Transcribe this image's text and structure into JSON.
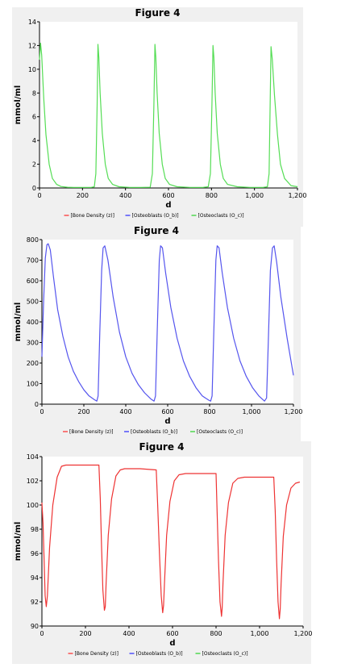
{
  "chart_data": [
    {
      "type": "line",
      "title": "Figure 4",
      "xlabel": "d",
      "ylabel": "mmol/ml",
      "xlim": [
        0,
        1200
      ],
      "ylim": [
        0,
        14
      ],
      "xticks": [
        0,
        200,
        400,
        600,
        800,
        1000,
        1200
      ],
      "xtick_labels": [
        "0",
        "200",
        "400",
        "600",
        "800",
        "1,000",
        "1,200"
      ],
      "yticks": [
        0,
        2,
        4,
        6,
        8,
        10,
        12,
        14
      ],
      "ytick_labels": [
        "0",
        "2",
        "4",
        "6",
        "8",
        "10",
        "12",
        "14"
      ],
      "grid": false,
      "legend_position": "bottom",
      "legend": [
        {
          "label": "[Bone Density (z)]",
          "color": "#ff0000"
        },
        {
          "label": "[Osteoblasts (O_b)]",
          "color": "#0000ff"
        },
        {
          "label": "[Osteoclasts (O_c)]",
          "color": "#00cc00"
        }
      ],
      "series": [
        {
          "name": "[Osteoclasts (O_c)]",
          "color": "#55dd55",
          "x": [
            0,
            5,
            10,
            20,
            30,
            45,
            60,
            80,
            100,
            130,
            160,
            200,
            240,
            255,
            262,
            268,
            272,
            276,
            282,
            292,
            306,
            320,
            340,
            370,
            420,
            470,
            515,
            525,
            532,
            537,
            541,
            547,
            557,
            571,
            585,
            605,
            640,
            700,
            760,
            785,
            795,
            802,
            807,
            811,
            817,
            827,
            841,
            855,
            875,
            920,
            980,
            1040,
            1060,
            1068,
            1073,
            1077,
            1083,
            1093,
            1107,
            1121,
            1140,
            1170,
            1200
          ],
          "y": [
            10.8,
            12.2,
            11.2,
            7.5,
            4.5,
            2.0,
            0.8,
            0.3,
            0.12,
            0.06,
            0.05,
            0.05,
            0.05,
            0.1,
            1.2,
            7.0,
            12.1,
            11.0,
            8.0,
            4.6,
            2.0,
            0.8,
            0.3,
            0.1,
            0.05,
            0.05,
            0.06,
            1.2,
            7.0,
            12.1,
            11.0,
            8.0,
            4.6,
            2.0,
            0.8,
            0.3,
            0.1,
            0.05,
            0.05,
            0.1,
            1.2,
            7.0,
            12.0,
            11.0,
            8.0,
            4.6,
            2.0,
            0.8,
            0.3,
            0.1,
            0.05,
            0.05,
            0.1,
            1.2,
            7.0,
            11.9,
            10.8,
            7.8,
            4.5,
            2.0,
            0.8,
            0.2,
            0.1
          ]
        }
      ]
    },
    {
      "type": "line",
      "title": "Figure 4",
      "xlabel": "d",
      "ylabel": "mmol/ml",
      "xlim": [
        0,
        1200
      ],
      "ylim": [
        0,
        800
      ],
      "xticks": [
        0,
        200,
        400,
        600,
        800,
        1000,
        1200
      ],
      "xtick_labels": [
        "0",
        "200",
        "400",
        "600",
        "800",
        "1,000",
        "1,200"
      ],
      "yticks": [
        0,
        100,
        200,
        300,
        400,
        500,
        600,
        700,
        800
      ],
      "ytick_labels": [
        "0",
        "100",
        "200",
        "300",
        "400",
        "500",
        "600",
        "700",
        "800"
      ],
      "grid": false,
      "legend_position": "bottom",
      "legend": [
        {
          "label": "[Bone Density (z)]",
          "color": "#ff0000"
        },
        {
          "label": "[Osteoblasts (O_b)]",
          "color": "#0000ff"
        },
        {
          "label": "[Osteoclasts (O_c)]",
          "color": "#00cc00"
        }
      ],
      "series": [
        {
          "name": "[Osteoblasts (O_b)]",
          "color": "#5555ee",
          "x": [
            0,
            8,
            16,
            24,
            30,
            40,
            55,
            75,
            100,
            125,
            150,
            175,
            200,
            225,
            250,
            262,
            268,
            276,
            285,
            292,
            300,
            315,
            340,
            370,
            400,
            430,
            460,
            490,
            520,
            535,
            542,
            550,
            560,
            566,
            575,
            590,
            615,
            645,
            675,
            705,
            735,
            765,
            795,
            805,
            812,
            820,
            830,
            836,
            845,
            860,
            885,
            915,
            945,
            975,
            1005,
            1035,
            1062,
            1072,
            1080,
            1090,
            1100,
            1108,
            1120,
            1140,
            1170,
            1200
          ],
          "y": [
            230,
            500,
            710,
            775,
            780,
            750,
            620,
            460,
            330,
            230,
            160,
            110,
            70,
            40,
            22,
            15,
            40,
            350,
            650,
            760,
            770,
            700,
            520,
            350,
            230,
            150,
            95,
            55,
            25,
            15,
            40,
            350,
            700,
            770,
            760,
            640,
            470,
            320,
            210,
            135,
            80,
            40,
            20,
            15,
            40,
            350,
            700,
            770,
            760,
            640,
            470,
            320,
            210,
            135,
            80,
            40,
            15,
            30,
            300,
            650,
            760,
            770,
            690,
            520,
            320,
            140
          ]
        }
      ]
    },
    {
      "type": "line",
      "title": "Figure 4",
      "xlabel": "d",
      "ylabel": "mmol/ml",
      "xlim": [
        0,
        1200
      ],
      "ylim": [
        90,
        104
      ],
      "xticks": [
        0,
        200,
        400,
        600,
        800,
        1000,
        1200
      ],
      "xtick_labels": [
        "0",
        "200",
        "400",
        "600",
        "800",
        "1,000",
        "1,200"
      ],
      "yticks": [
        90,
        92,
        94,
        96,
        98,
        100,
        102,
        104
      ],
      "ytick_labels": [
        "90",
        "92",
        "94",
        "96",
        "98",
        "100",
        "102",
        "104"
      ],
      "grid": false,
      "legend_position": "bottom",
      "legend": [
        {
          "label": "[Bone Density (z)]",
          "color": "#ff0000"
        },
        {
          "label": "[Osteoblasts (O_b)]",
          "color": "#0000ff"
        },
        {
          "label": "[Osteoclasts (O_c)]",
          "color": "#00cc00"
        }
      ],
      "series": [
        {
          "name": "[Bone Density (z)]",
          "color": "#ee3333",
          "x": [
            0,
            5,
            10,
            15,
            20,
            25,
            35,
            50,
            70,
            90,
            110,
            180,
            262,
            268,
            274,
            280,
            287,
            291,
            295,
            305,
            320,
            340,
            360,
            380,
            450,
            525,
            532,
            540,
            548,
            555,
            559,
            563,
            573,
            588,
            608,
            630,
            660,
            800,
            805,
            811,
            818,
            825,
            828,
            832,
            842,
            857,
            877,
            900,
            930,
            1065,
            1072,
            1078,
            1085,
            1091,
            1095,
            1099,
            1109,
            1124,
            1144,
            1165,
            1185
          ],
          "y": [
            100.2,
            98.5,
            95.5,
            92.5,
            91.6,
            92.5,
            96.5,
            100.0,
            102.3,
            103.2,
            103.3,
            103.3,
            103.3,
            100.5,
            96.5,
            93.0,
            91.3,
            91.6,
            93.5,
            97.5,
            100.5,
            102.4,
            102.9,
            103.0,
            103.0,
            102.9,
            100.0,
            96.0,
            92.5,
            91.1,
            91.7,
            93.5,
            97.5,
            100.3,
            102.0,
            102.5,
            102.6,
            102.6,
            99.5,
            95.5,
            92.0,
            90.8,
            91.5,
            93.5,
            97.5,
            100.2,
            101.8,
            102.2,
            102.3,
            102.3,
            99.5,
            95.5,
            92.0,
            90.6,
            91.4,
            93.5,
            97.4,
            100.0,
            101.4,
            101.8,
            101.9
          ]
        }
      ]
    }
  ]
}
